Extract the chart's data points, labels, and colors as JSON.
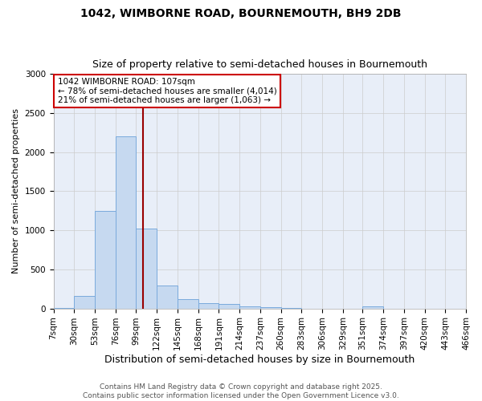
{
  "title": "1042, WIMBORNE ROAD, BOURNEMOUTH, BH9 2DB",
  "subtitle": "Size of property relative to semi-detached houses in Bournemouth",
  "xlabel": "Distribution of semi-detached houses by size in Bournemouth",
  "ylabel": "Number of semi-detached properties",
  "footer_line1": "Contains HM Land Registry data © Crown copyright and database right 2025.",
  "footer_line2": "Contains public sector information licensed under the Open Government Licence v3.0.",
  "annotation_title": "1042 WIMBORNE ROAD: 107sqm",
  "annotation_line1": "← 78% of semi-detached houses are smaller (4,014)",
  "annotation_line2": "21% of semi-detached houses are larger (1,063) →",
  "property_size": 107,
  "bins": [
    7,
    30,
    53,
    76,
    99,
    122,
    145,
    168,
    191,
    214,
    237,
    260,
    283,
    306,
    329,
    351,
    374,
    397,
    420,
    443,
    466
  ],
  "bin_labels": [
    "7sqm",
    "30sqm",
    "53sqm",
    "76sqm",
    "99sqm",
    "122sqm",
    "145sqm",
    "168sqm",
    "191sqm",
    "214sqm",
    "237sqm",
    "260sqm",
    "283sqm",
    "306sqm",
    "329sqm",
    "351sqm",
    "374sqm",
    "397sqm",
    "420sqm",
    "443sqm",
    "466sqm"
  ],
  "counts": [
    10,
    160,
    1250,
    2200,
    1020,
    295,
    120,
    65,
    55,
    30,
    20,
    5,
    0,
    0,
    0,
    30,
    0,
    0,
    0,
    0
  ],
  "bar_color": "#c6d9f0",
  "bar_edge_color": "#7aaadc",
  "vline_color": "#990000",
  "background_color": "#ffffff",
  "plot_bg_color": "#e8eef8",
  "annotation_box_color": "#ffffff",
  "annotation_box_edge": "#cc0000",
  "ylim": [
    0,
    3000
  ],
  "yticks": [
    0,
    500,
    1000,
    1500,
    2000,
    2500,
    3000
  ],
  "grid_color": "#cccccc",
  "title_fontsize": 10,
  "subtitle_fontsize": 9,
  "ylabel_fontsize": 8,
  "xlabel_fontsize": 9,
  "tick_fontsize": 7.5,
  "annotation_fontsize": 7.5,
  "footer_fontsize": 6.5
}
